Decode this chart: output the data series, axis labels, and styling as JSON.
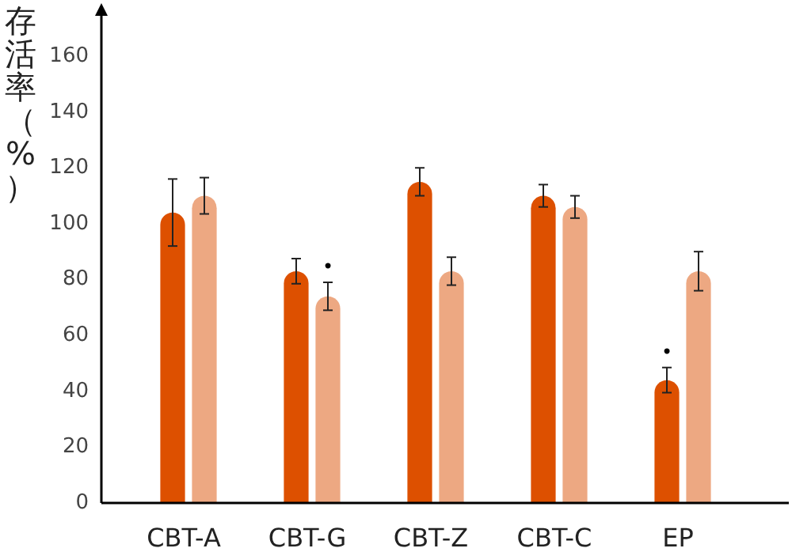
{
  "chart_data": {
    "type": "bar",
    "ylabel": "存活率（%）",
    "categories": [
      "CBT-A",
      "CBT-G",
      "CBT-Z",
      "CBT-C",
      "EP"
    ],
    "series": [
      {
        "color": "#dd5000",
        "values": [
          104,
          83,
          115,
          110,
          44
        ],
        "errors": [
          12,
          4.5,
          5,
          4,
          4.5
        ]
      },
      {
        "color": "#eda882",
        "values": [
          110,
          74,
          83,
          106,
          83
        ],
        "errors": [
          6.5,
          5,
          5,
          4,
          7
        ]
      }
    ],
    "ylim": [
      0,
      175
    ],
    "yticks": [
      0,
      20,
      40,
      60,
      80,
      100,
      120,
      140,
      160
    ],
    "grid": false,
    "annotations": [
      {
        "text": "•",
        "x": "CBT-G",
        "y": 74
      },
      {
        "text": "•",
        "x": "EP",
        "y": 44
      }
    ]
  }
}
